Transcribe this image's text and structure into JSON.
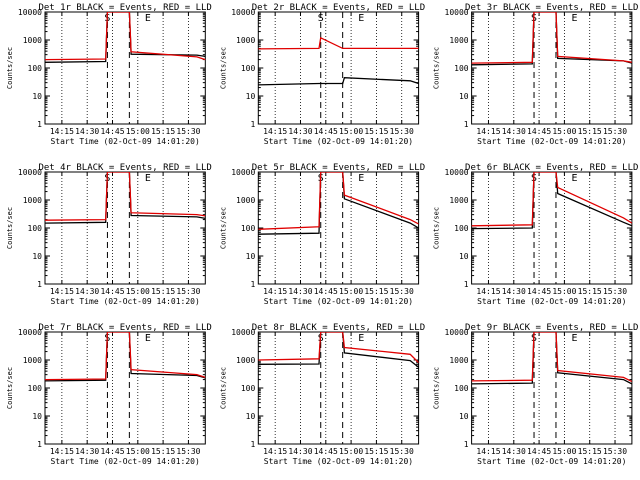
{
  "figure": {
    "background": "#ffffff"
  },
  "colors": {
    "events": "#000000",
    "lld": "#e00000",
    "axes": "#000000"
  },
  "chart_data": [
    {
      "type": "line",
      "title": "Det 1r BLACK = Events, RED = LLD",
      "xlabel": "Start Time (02-Oct-09 14:01:20)",
      "ylabel": "Counts/sec",
      "xlim": [
        "14:05",
        "15:40"
      ],
      "ylim": [
        1,
        10000
      ],
      "yscale": "log",
      "xticks": [
        "14:15",
        "14:30",
        "14:45",
        "15:00",
        "15:15",
        "15:30"
      ],
      "yticks": [
        "1",
        "10",
        "100",
        "1000",
        "10000"
      ],
      "markers": {
        "S": "14:42",
        "E": "15:06"
      },
      "dashed_lines": [
        "14:42",
        "14:55"
      ],
      "dotted_lines": [
        "14:15",
        "14:30",
        "14:45",
        "15:00",
        "15:15",
        "15:30"
      ],
      "series": [
        {
          "name": "Events",
          "x": [
            "14:05",
            "14:41",
            "14:42",
            "14:55",
            "14:56",
            "15:35",
            "15:40"
          ],
          "values": [
            160,
            170,
            10000,
            10000,
            310,
            290,
            260
          ]
        },
        {
          "name": "LLD",
          "x": [
            "14:05",
            "14:41",
            "14:42",
            "14:55",
            "14:56",
            "15:35",
            "15:40"
          ],
          "values": [
            200,
            210,
            10000,
            10000,
            380,
            250,
            200
          ]
        }
      ]
    },
    {
      "type": "line",
      "title": "Det 2r BLACK = Events, RED = LLD",
      "xlabel": "Start Time (02-Oct-09 14:01:20)",
      "ylabel": "Counts/sec",
      "xlim": [
        "14:05",
        "15:40"
      ],
      "ylim": [
        1,
        10000
      ],
      "yscale": "log",
      "xticks": [
        "14:15",
        "14:30",
        "14:45",
        "15:00",
        "15:15",
        "15:30"
      ],
      "yticks": [
        "1",
        "10",
        "100",
        "1000",
        "10000"
      ],
      "markers": {
        "S": "14:42",
        "E": "15:06"
      },
      "dashed_lines": [
        "14:42",
        "14:55"
      ],
      "dotted_lines": [
        "14:15",
        "14:30",
        "14:45",
        "15:00",
        "15:15",
        "15:30"
      ],
      "series": [
        {
          "name": "Events",
          "x": [
            "14:05",
            "14:41",
            "14:42",
            "14:55",
            "14:56",
            "15:35",
            "15:40"
          ],
          "values": [
            25,
            28,
            28,
            28,
            45,
            35,
            28
          ]
        },
        {
          "name": "LLD",
          "x": [
            "14:05",
            "14:41",
            "14:42",
            "14:55",
            "14:56",
            "15:35",
            "15:40"
          ],
          "values": [
            480,
            500,
            1200,
            500,
            500,
            500,
            500
          ]
        }
      ]
    },
    {
      "type": "line",
      "title": "Det 3r BLACK = Events, RED = LLD",
      "xlabel": "Start Time (02-Oct-09 14:01:20)",
      "ylabel": "Counts/sec",
      "xlim": [
        "14:05",
        "15:40"
      ],
      "ylim": [
        1,
        10000
      ],
      "yscale": "log",
      "xticks": [
        "14:15",
        "14:30",
        "14:45",
        "15:00",
        "15:15",
        "15:30"
      ],
      "yticks": [
        "1",
        "10",
        "100",
        "1000",
        "10000"
      ],
      "markers": {
        "S": "14:42",
        "E": "15:06"
      },
      "dashed_lines": [
        "14:42",
        "14:55"
      ],
      "dotted_lines": [
        "14:15",
        "14:30",
        "14:45",
        "15:00",
        "15:15",
        "15:30"
      ],
      "series": [
        {
          "name": "Events",
          "x": [
            "14:05",
            "14:41",
            "14:42",
            "14:55",
            "14:56",
            "15:35",
            "15:40"
          ],
          "values": [
            130,
            140,
            10000,
            10000,
            220,
            180,
            150
          ]
        },
        {
          "name": "LLD",
          "x": [
            "14:05",
            "14:41",
            "14:42",
            "14:55",
            "14:56",
            "15:35",
            "15:40"
          ],
          "values": [
            150,
            160,
            10000,
            10000,
            260,
            180,
            160
          ]
        }
      ]
    },
    {
      "type": "line",
      "title": "Det 4r BLACK = Events, RED = LLD",
      "xlabel": "Start Time (02-Oct-09 14:01:20)",
      "ylabel": "Counts/sec",
      "xlim": [
        "14:05",
        "15:40"
      ],
      "ylim": [
        1,
        10000
      ],
      "yscale": "log",
      "xticks": [
        "14:15",
        "14:30",
        "14:45",
        "15:00",
        "15:15",
        "15:30"
      ],
      "yticks": [
        "1",
        "10",
        "100",
        "1000",
        "10000"
      ],
      "markers": {
        "S": "14:42",
        "E": "15:06"
      },
      "dashed_lines": [
        "14:42",
        "14:55"
      ],
      "dotted_lines": [
        "14:15",
        "14:30",
        "14:45",
        "15:00",
        "15:15",
        "15:30"
      ],
      "series": [
        {
          "name": "Events",
          "x": [
            "14:05",
            "14:41",
            "14:42",
            "14:55",
            "14:56",
            "15:35",
            "15:40"
          ],
          "values": [
            150,
            160,
            10000,
            10000,
            280,
            250,
            220
          ]
        },
        {
          "name": "LLD",
          "x": [
            "14:05",
            "14:41",
            "14:42",
            "14:55",
            "14:56",
            "15:35",
            "15:40"
          ],
          "values": [
            190,
            200,
            10000,
            10000,
            350,
            300,
            270
          ]
        }
      ]
    },
    {
      "type": "line",
      "title": "Det 5r BLACK = Events, RED = LLD",
      "xlabel": "Start Time (02-Oct-09 14:01:20)",
      "ylabel": "Counts/sec",
      "xlim": [
        "14:05",
        "15:40"
      ],
      "ylim": [
        1,
        10000
      ],
      "yscale": "log",
      "xticks": [
        "14:15",
        "14:30",
        "14:45",
        "15:00",
        "15:15",
        "15:30"
      ],
      "yticks": [
        "1",
        "10",
        "100",
        "1000",
        "10000"
      ],
      "markers": {
        "S": "14:42",
        "E": "15:06"
      },
      "dashed_lines": [
        "14:42",
        "14:55"
      ],
      "dotted_lines": [
        "14:15",
        "14:30",
        "14:45",
        "15:00",
        "15:15",
        "15:30"
      ],
      "series": [
        {
          "name": "Events",
          "x": [
            "14:05",
            "14:41",
            "14:42",
            "14:55",
            "14:56",
            "15:35",
            "15:40"
          ],
          "values": [
            60,
            65,
            10000,
            10000,
            1100,
            150,
            100
          ]
        },
        {
          "name": "LLD",
          "x": [
            "14:05",
            "14:41",
            "14:42",
            "14:55",
            "14:56",
            "15:35",
            "15:40"
          ],
          "values": [
            90,
            110,
            10000,
            10000,
            1500,
            200,
            140
          ]
        }
      ]
    },
    {
      "type": "line",
      "title": "Det 6r BLACK = Events, RED = LLD",
      "xlabel": "Start Time (02-Oct-09 14:01:20)",
      "ylabel": "Counts/sec",
      "xlim": [
        "14:05",
        "15:40"
      ],
      "ylim": [
        1,
        10000
      ],
      "yscale": "log",
      "xticks": [
        "14:15",
        "14:30",
        "14:45",
        "15:00",
        "15:15",
        "15:30"
      ],
      "yticks": [
        "1",
        "10",
        "100",
        "1000",
        "10000"
      ],
      "markers": {
        "S": "14:42",
        "E": "15:06"
      },
      "dashed_lines": [
        "14:42",
        "14:55"
      ],
      "dotted_lines": [
        "14:15",
        "14:30",
        "14:45",
        "15:00",
        "15:15",
        "15:30"
      ],
      "series": [
        {
          "name": "Events",
          "x": [
            "14:05",
            "14:41",
            "14:42",
            "14:55",
            "14:56",
            "15:35",
            "15:40"
          ],
          "values": [
            95,
            100,
            10000,
            10000,
            1700,
            160,
            120
          ]
        },
        {
          "name": "LLD",
          "x": [
            "14:05",
            "14:41",
            "14:42",
            "14:55",
            "14:56",
            "15:35",
            "15:40"
          ],
          "values": [
            120,
            130,
            10000,
            10000,
            2800,
            230,
            150
          ]
        }
      ]
    },
    {
      "type": "line",
      "title": "Det 7r BLACK = Events, RED = LLD",
      "xlabel": "Start Time (02-Oct-09 14:01:20)",
      "ylabel": "Counts/sec",
      "xlim": [
        "14:05",
        "15:40"
      ],
      "ylim": [
        1,
        10000
      ],
      "yscale": "log",
      "xticks": [
        "14:15",
        "14:30",
        "14:45",
        "15:00",
        "15:15",
        "15:30"
      ],
      "yticks": [
        "1",
        "10",
        "100",
        "1000",
        "10000"
      ],
      "markers": {
        "S": "14:42",
        "E": "15:06"
      },
      "dashed_lines": [
        "14:42",
        "14:55"
      ],
      "dotted_lines": [
        "14:15",
        "14:30",
        "14:45",
        "15:00",
        "15:15",
        "15:30"
      ],
      "series": [
        {
          "name": "Events",
          "x": [
            "14:05",
            "14:41",
            "14:42",
            "14:55",
            "14:56",
            "15:35",
            "15:40"
          ],
          "values": [
            180,
            190,
            10000,
            10000,
            330,
            280,
            230
          ]
        },
        {
          "name": "LLD",
          "x": [
            "14:05",
            "14:41",
            "14:42",
            "14:55",
            "14:56",
            "15:35",
            "15:40"
          ],
          "values": [
            200,
            210,
            10000,
            10000,
            450,
            300,
            240
          ]
        }
      ]
    },
    {
      "type": "line",
      "title": "Det 8r BLACK = Events, RED = LLD",
      "xlabel": "Start Time (02-Oct-09 14:01:20)",
      "ylabel": "Counts/sec",
      "xlim": [
        "14:05",
        "15:40"
      ],
      "ylim": [
        1,
        10000
      ],
      "yscale": "log",
      "xticks": [
        "14:15",
        "14:30",
        "14:45",
        "15:00",
        "15:15",
        "15:30"
      ],
      "yticks": [
        "1",
        "10",
        "100",
        "1000",
        "10000"
      ],
      "markers": {
        "S": "14:42",
        "E": "15:06"
      },
      "dashed_lines": [
        "14:42",
        "14:55"
      ],
      "dotted_lines": [
        "14:15",
        "14:30",
        "14:45",
        "15:00",
        "15:15",
        "15:30"
      ],
      "series": [
        {
          "name": "Events",
          "x": [
            "14:05",
            "14:41",
            "14:42",
            "14:55",
            "14:56",
            "15:35",
            "15:40"
          ],
          "values": [
            700,
            720,
            10000,
            10000,
            1800,
            950,
            550
          ]
        },
        {
          "name": "LLD",
          "x": [
            "14:05",
            "14:41",
            "14:42",
            "14:55",
            "14:56",
            "15:35",
            "15:40"
          ],
          "values": [
            1000,
            1100,
            10000,
            10000,
            2800,
            1600,
            800
          ]
        }
      ]
    },
    {
      "type": "line",
      "title": "Det 9r BLACK = Events, RED = LLD",
      "xlabel": "Start Time (02-Oct-09 14:01:20)",
      "ylabel": "Counts/sec",
      "xlim": [
        "14:05",
        "15:40"
      ],
      "ylim": [
        1,
        10000
      ],
      "yscale": "log",
      "xticks": [
        "14:15",
        "14:30",
        "14:45",
        "15:00",
        "15:15",
        "15:30"
      ],
      "yticks": [
        "1",
        "10",
        "100",
        "1000",
        "10000"
      ],
      "markers": {
        "S": "14:42",
        "E": "15:06"
      },
      "dashed_lines": [
        "14:42",
        "14:55"
      ],
      "dotted_lines": [
        "14:15",
        "14:30",
        "14:45",
        "15:00",
        "15:15",
        "15:30"
      ],
      "series": [
        {
          "name": "Events",
          "x": [
            "14:05",
            "14:41",
            "14:42",
            "14:55",
            "14:56",
            "15:35",
            "15:40"
          ],
          "values": [
            140,
            150,
            10000,
            10000,
            350,
            200,
            140
          ]
        },
        {
          "name": "LLD",
          "x": [
            "14:05",
            "14:41",
            "14:42",
            "14:55",
            "14:56",
            "15:35",
            "15:40"
          ],
          "values": [
            180,
            190,
            10000,
            10000,
            420,
            240,
            170
          ]
        }
      ]
    }
  ]
}
